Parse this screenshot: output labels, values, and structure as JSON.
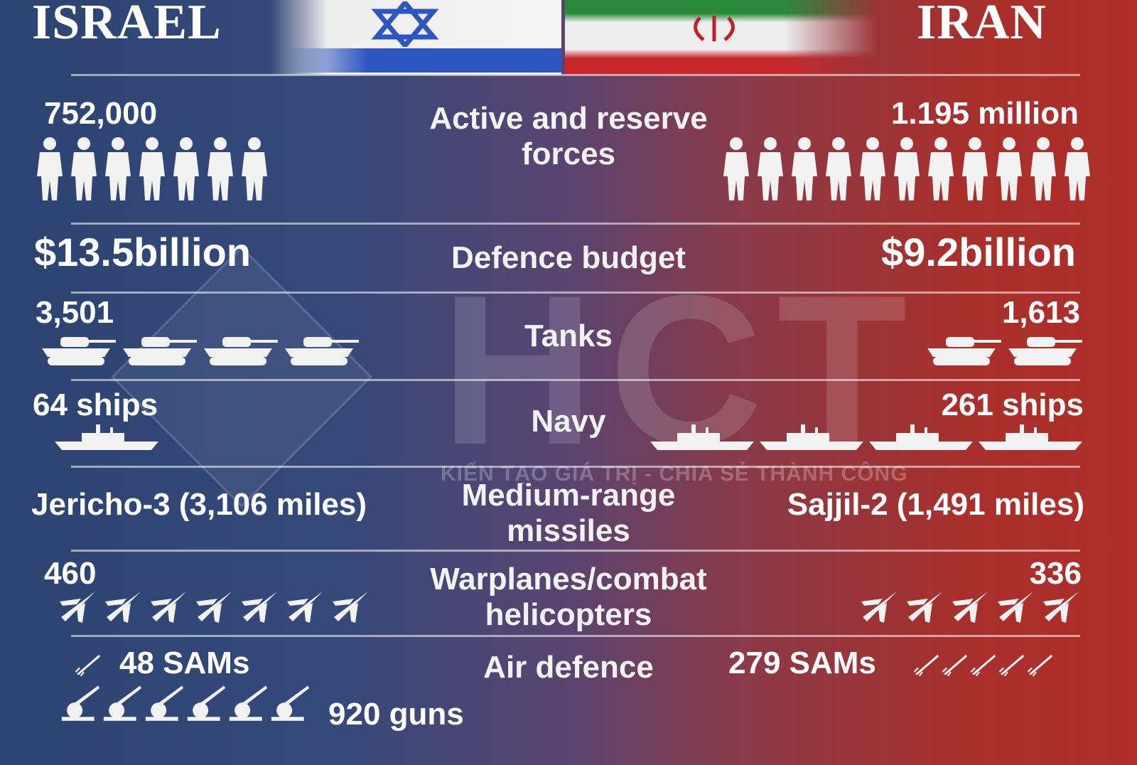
{
  "header": {
    "left_title": "ISRAEL",
    "right_title": "IRAN"
  },
  "watermark": {
    "logo": "HCT",
    "tagline": "KIẾN TẠO GIÁ TRỊ - CHIA SẺ THÀNH CÔNG"
  },
  "colors": {
    "israel_blue": "#2c4472",
    "iran_red": "#b02d28"
  },
  "rows": [
    {
      "label": "Active and reserve forces",
      "israel": "752,000",
      "iran": "1.195 million",
      "israel_icons": 7,
      "iran_icons": 11,
      "icon": "soldier-icon"
    },
    {
      "label": "Defence budget",
      "israel": "$13.5billion",
      "iran": "$9.2billion"
    },
    {
      "label": "Tanks",
      "israel": "3,501",
      "iran": "1,613",
      "israel_icons": 4,
      "iran_icons": 2,
      "icon": "tank-icon"
    },
    {
      "label": "Navy",
      "israel": "64 ships",
      "iran": "261 ships",
      "israel_icons": 1,
      "iran_icons": 4,
      "icon": "ship-icon"
    },
    {
      "label": "Medium-range missiles",
      "israel": "Jericho-3 (3,106 miles)",
      "iran": "Sajjil-2 (1,491 miles)"
    },
    {
      "label": "Warplanes/combat helicopters",
      "israel": "460",
      "iran": "336",
      "israel_icons": 7,
      "iran_icons": 5,
      "icon": "jet-icon"
    },
    {
      "label": "Air defence",
      "israel": "48 SAMs",
      "israel_guns": "920 guns",
      "iran": "279 SAMs",
      "israel_sam_icons": 1,
      "israel_gun_icons": 6,
      "iran_sam_icons": 5
    }
  ]
}
